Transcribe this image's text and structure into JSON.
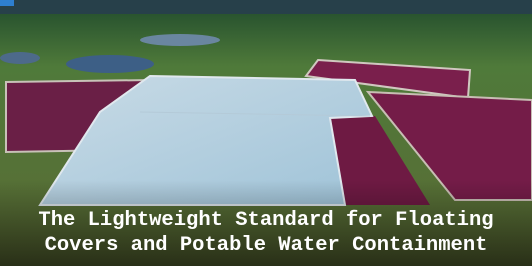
{
  "caption": {
    "lines": [
      "The Lightweight Standard for Floating",
      "Covers and Potable Water Containment"
    ]
  }
}
